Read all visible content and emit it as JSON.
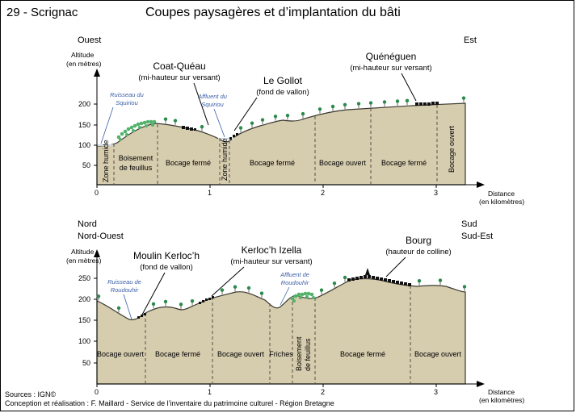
{
  "header": {
    "code": "29 - Scrignac",
    "title": "Coupes paysagères et d’implantation du bâti"
  },
  "colors": {
    "terrain": "#d6ccae",
    "outline": "#3b3a30",
    "tree": "#2a8a4c",
    "forest": "#52b26a",
    "building": "#111111",
    "water_label": "#3a5fa8"
  },
  "profile1": {
    "orientation_left": "Ouest",
    "orientation_right": "Est",
    "y_axis_label_1": "Altitude",
    "y_axis_label_2": "(en mètres)",
    "x_axis_label_1": "Distance",
    "x_axis_label_2": "(en kilomètres)",
    "y_ticks": [
      "50",
      "100",
      "150",
      "200"
    ],
    "x_ticks": [
      "0",
      "1",
      "2",
      "3"
    ],
    "places": [
      {
        "name": "Coat-Quéau",
        "note": "(mi-hauteur sur versant)"
      },
      {
        "name": "Le Gollot",
        "note": "(fond de vallon)"
      },
      {
        "name": "Quénéguen",
        "note": "(mi-hauteur sur versant)"
      }
    ],
    "water": [
      {
        "line1": "Ruisseau du",
        "line2": "Squiriou"
      },
      {
        "line1": "Affluent du",
        "line2": "Squiriou"
      }
    ],
    "zones": [
      {
        "line1": "Zone humide",
        "line2": ""
      },
      {
        "line1": "Boisement",
        "line2": "de feuillus"
      },
      {
        "line1": "Bocage fermé",
        "line2": ""
      },
      {
        "line1": "Zone humide",
        "line2": ""
      },
      {
        "line1": "Bocage fermé",
        "line2": ""
      },
      {
        "line1": "Bocage ouvert",
        "line2": ""
      },
      {
        "line1": "Bocage fermé",
        "line2": ""
      },
      {
        "line1": "Bocage ouvert",
        "line2": ""
      }
    ]
  },
  "profile2": {
    "orientation_left_1": "Nord",
    "orientation_left_2": "Nord-Ouest",
    "orientation_right_1": "Sud",
    "orientation_right_2": "Sud-Est",
    "y_axis_label_1": "Altitude",
    "y_axis_label_2": "(en mètres)",
    "x_axis_label_1": "Distance",
    "x_axis_label_2": "(en kilomètres)",
    "y_ticks": [
      "50",
      "100",
      "150",
      "200",
      "250"
    ],
    "x_ticks": [
      "0",
      "1",
      "2",
      "3"
    ],
    "places": [
      {
        "name": "Moulin Kerloc’h",
        "note": "(fond de vallon)"
      },
      {
        "name": "Kerloc’h Izella",
        "note": "(mi-hauteur sur versant)"
      },
      {
        "name": "Bourg",
        "note": "(hauteur de colline)"
      }
    ],
    "water": [
      {
        "line1": "Ruisseau de",
        "line2": "Roudouhir"
      },
      {
        "line1": "Affluent de",
        "line2": "Roudouhir"
      }
    ],
    "zones": [
      {
        "line1": "Bocage ouvert",
        "line2": ""
      },
      {
        "line1": "Bocage fermé",
        "line2": ""
      },
      {
        "line1": "Bocage ouvert",
        "line2": ""
      },
      {
        "line1": "Friches",
        "line2": ""
      },
      {
        "line1": "Boisement",
        "line2": "de feuillus"
      },
      {
        "line1": "Bocage fermé",
        "line2": ""
      },
      {
        "line1": "Bocage ouvert",
        "line2": ""
      }
    ]
  },
  "footer": {
    "sources": "Sources : IGN©",
    "credits": "Conception et réalisation : F. Maillard - Service de l’inventaire du patrimoine culturel - Région Bretagne"
  }
}
